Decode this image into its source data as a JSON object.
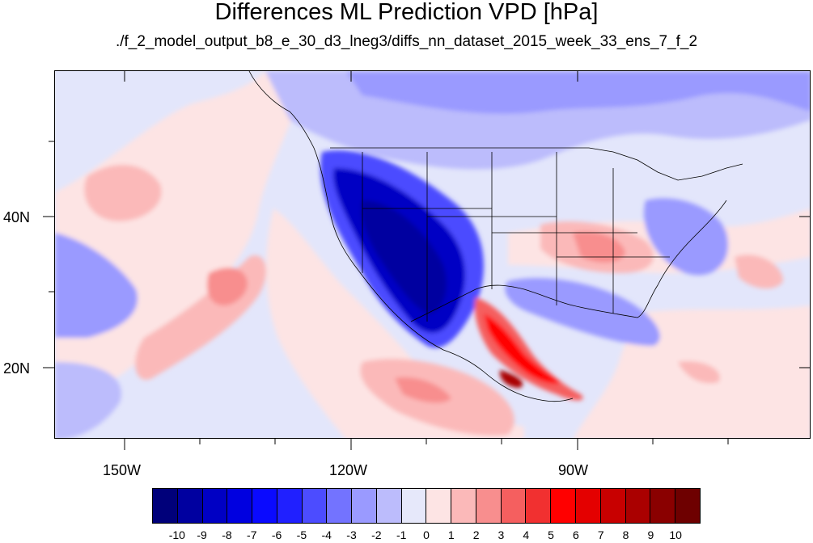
{
  "title": "Differences ML Prediction VPD [hPa]",
  "subtitle": "./f_2_model_output_b8_e_30_d3_lneg3/diffs_nn_dataset_2015_week_33_ens_7_f_2",
  "map": {
    "lon_range": [
      -160,
      -60
    ],
    "lat_range": [
      10,
      59
    ],
    "lon_labels": [
      "150W",
      "120W",
      "90W"
    ],
    "lat_labels": [
      "40N",
      "20N"
    ]
  },
  "colorbar": {
    "levels": [
      "-10",
      "-9",
      "-8",
      "-7",
      "-6",
      "-5",
      "-4",
      "-3",
      "-2",
      "-1",
      "0",
      "1",
      "2",
      "3",
      "4",
      "5",
      "6",
      "7",
      "8",
      "9",
      "10"
    ],
    "colors": [
      "#00007a",
      "#0000a0",
      "#0000c4",
      "#0000e0",
      "#0a0aff",
      "#2020ff",
      "#4c4cff",
      "#7373ff",
      "#9a9aff",
      "#bcbcfc",
      "#e6e8fa",
      "#fde4e4",
      "#fbb9b9",
      "#f88e8e",
      "#f55f5f",
      "#f13030",
      "#ff0000",
      "#e40000",
      "#c80000",
      "#aa0000",
      "#8a0000",
      "#6e0000"
    ]
  }
}
